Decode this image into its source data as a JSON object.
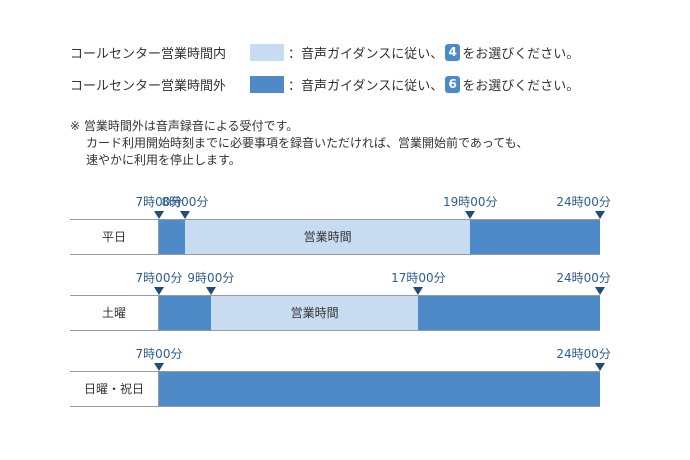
{
  "legend": {
    "inside": {
      "label": "コールセンター営業時間内",
      "desc_before": "：音声ガイダンスに従い、",
      "badge": "4",
      "desc_after": "をお選びください。",
      "color": "#c7dcf0"
    },
    "outside": {
      "label": "コールセンター営業時間外",
      "desc_before": "：音声ガイダンスに従い、",
      "badge": "6",
      "desc_after": "をお選びください。",
      "color": "#4f8ac8"
    },
    "badge_color": "#4f8ac8"
  },
  "note": {
    "line1": "※ 営業時間外は音声録音による受付です。",
    "line2": "カード利用開始時刻までに必要事項を録音いただければ、営業開始前であっても、",
    "line3": "速やかに利用を停止します。"
  },
  "schedules": [
    {
      "day": "平日",
      "segments": [
        {
          "type": "out",
          "start": 7,
          "end": 8,
          "label": ""
        },
        {
          "type": "in",
          "start": 8,
          "end": 19,
          "label": "営業時間"
        },
        {
          "type": "out",
          "start": 19,
          "end": 24,
          "label": ""
        }
      ],
      "markers": [
        "7時00分",
        "8時00分",
        "19時00分",
        "24時00分"
      ]
    },
    {
      "day": "土曜",
      "segments": [
        {
          "type": "out",
          "start": 7,
          "end": 9,
          "label": ""
        },
        {
          "type": "in",
          "start": 9,
          "end": 17,
          "label": "営業時間"
        },
        {
          "type": "out",
          "start": 17,
          "end": 24,
          "label": ""
        }
      ],
      "markers": [
        "7時00分",
        "9時00分",
        "17時00分",
        "24時00分"
      ]
    },
    {
      "day": "日曜・祝日",
      "segments": [
        {
          "type": "out",
          "start": 7,
          "end": 24,
          "label": ""
        }
      ],
      "markers": [
        "7時00分",
        "24時00分"
      ]
    }
  ]
}
